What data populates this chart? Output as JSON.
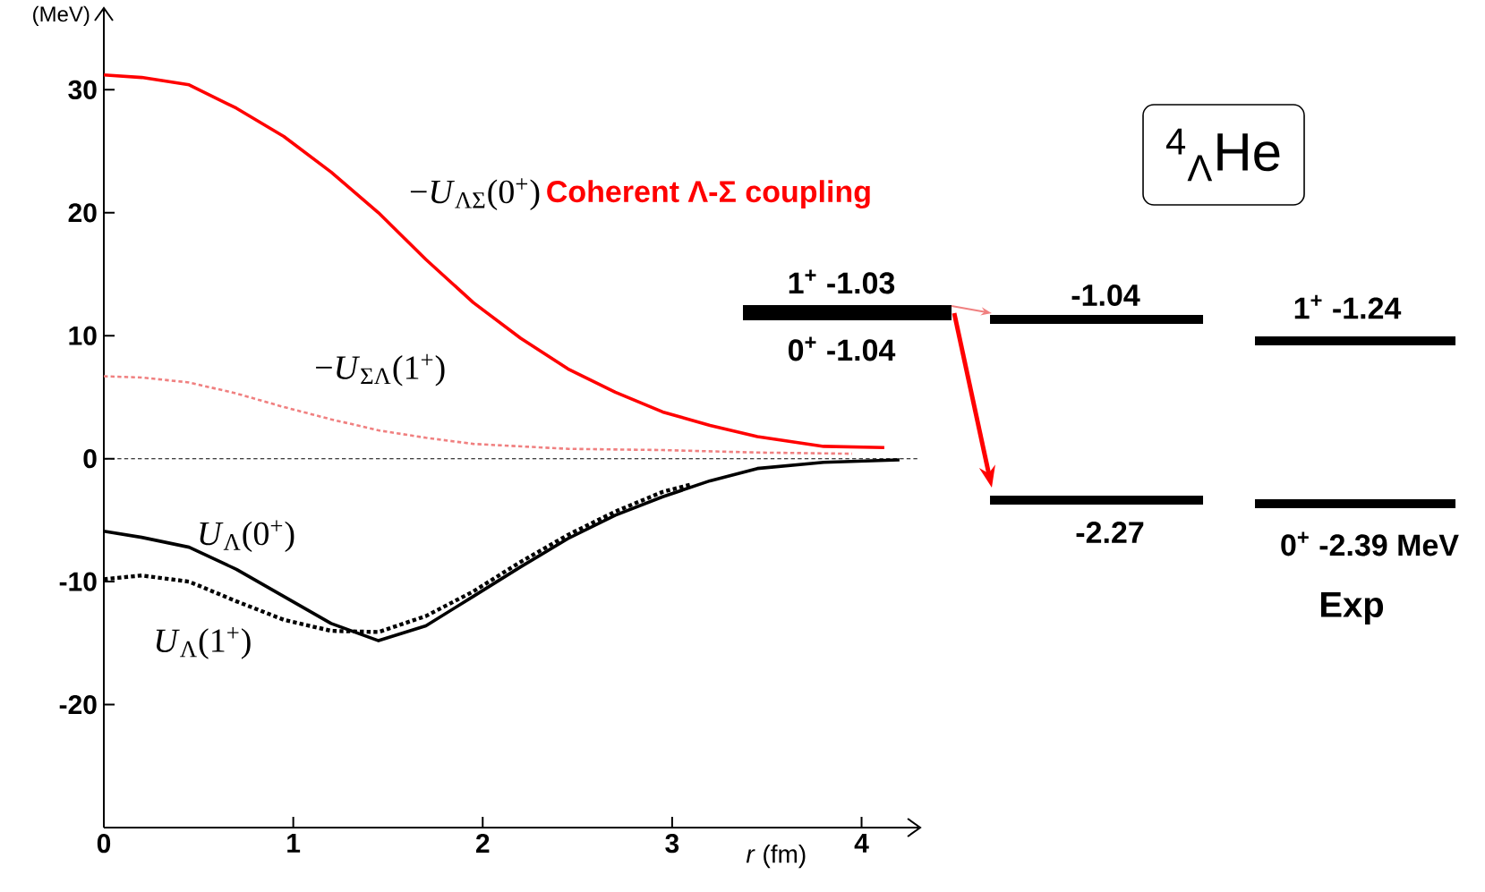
{
  "chart_data": [
    {
      "type": "line",
      "xlabel": "*r* (fm)",
      "ylabel": "(MeV)",
      "xlim": [
        0,
        4.3
      ],
      "ylim": [
        -30,
        36.5
      ],
      "xticks": [
        0,
        1,
        2,
        3,
        4
      ],
      "yticks": [
        -20,
        -10,
        0,
        10,
        20,
        30
      ],
      "series": [
        {
          "name": "−*U*$_{ΛΣ}$(0$^{+}$)",
          "color": "#ff0000",
          "line_style": "solid",
          "x": [
            0,
            0.2,
            0.45,
            0.7,
            0.95,
            1.2,
            1.45,
            1.7,
            1.95,
            2.2,
            2.45,
            2.7,
            2.95,
            3.2,
            3.45,
            3.8,
            4.12
          ],
          "values": [
            31.2,
            31,
            30.4,
            28.5,
            26.2,
            23.3,
            20,
            16.2,
            12.7,
            9.8,
            7.3,
            5.4,
            3.8,
            2.7,
            1.8,
            1.0,
            0.9
          ]
        },
        {
          "name": "−*U*$_{ΣΛ}$(1$^{+}$)",
          "color": "#f08080",
          "line_style": "dotted",
          "x": [
            0,
            0.2,
            0.45,
            0.7,
            0.95,
            1.2,
            1.45,
            1.7,
            1.95,
            2.45,
            2.95,
            3.45,
            3.95
          ],
          "values": [
            6.7,
            6.6,
            6.2,
            5.3,
            4.2,
            3.2,
            2.3,
            1.7,
            1.2,
            0.8,
            0.7,
            0.5,
            0.4
          ]
        },
        {
          "name": "*U*$_{Λ}$(0$^{+}$)",
          "color": "#000000",
          "line_style": "solid",
          "x": [
            0,
            0.2,
            0.45,
            0.7,
            0.95,
            1.2,
            1.45,
            1.7,
            1.95,
            2.2,
            2.45,
            2.7,
            2.95,
            3.2,
            3.45,
            3.8,
            4.2
          ],
          "values": [
            -5.9,
            -6.4,
            -7.2,
            -9,
            -11.2,
            -13.4,
            -14.8,
            -13.6,
            -11.2,
            -8.8,
            -6.5,
            -4.6,
            -3.1,
            -1.8,
            -0.8,
            -0.3,
            -0.1
          ]
        },
        {
          "name": "*U*$_{Λ}$(1$^{+}$)",
          "color": "#000000",
          "line_style": "dotted",
          "x": [
            0,
            0.2,
            0.45,
            0.7,
            0.95,
            1.2,
            1.45,
            1.7,
            1.95,
            2.2,
            2.45,
            2.7,
            2.95,
            3.1
          ],
          "values": [
            -9.8,
            -9.5,
            -10,
            -11.6,
            -13.1,
            -14,
            -14.1,
            -12.8,
            -10.8,
            -8.4,
            -6.2,
            -4.3,
            -2.7,
            -2.1
          ]
        }
      ],
      "ref_lines": [
        {
          "axis": "y",
          "value": 0,
          "line_style": "dotted"
        }
      ],
      "annotations": [
        "Coherent Λ-Σ coupling"
      ]
    },
    {
      "type": "other",
      "title": "$^{4}$$_{Λ}$He",
      "annotations": [
        "1$^{+}$  -1.03",
        "0$^{+}$  -1.04",
        "-1.04",
        "-2.27",
        "1$^{+}$  -1.24",
        "0$^{+}$  -2.39 MeV",
        "Exp"
      ]
    }
  ]
}
